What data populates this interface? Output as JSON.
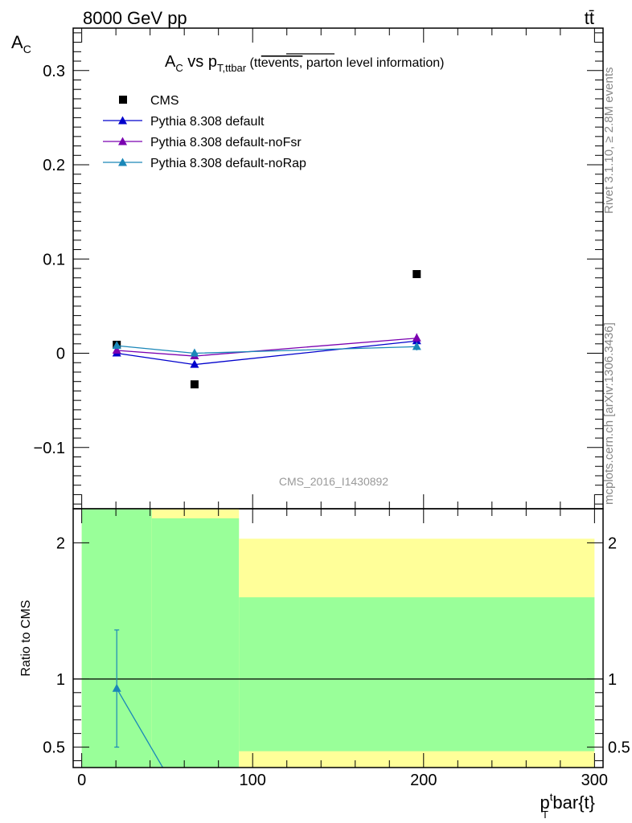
{
  "header": {
    "energy_label": "8000 GeV pp",
    "process_label": "tt̄"
  },
  "side": {
    "rivet": "Rivet 3.1.10, ≥ 2.8M events",
    "mcplots": "mcplots.cern.ch [arXiv:1306.3436]"
  },
  "colors": {
    "cms": "#000000",
    "default": "#0000cc",
    "noFsr": "#7a00b0",
    "noRap": "#1a87b8",
    "band_green": "#99ff99",
    "band_yellow": "#ffff99"
  },
  "chart_data": [
    {
      "type": "scatter",
      "name": "main",
      "title": {
        "a": "A",
        "a_sub": "C",
        "vs": " vs p",
        "p_sub": "T,ttbar",
        "paren_open": " (",
        "tt": "tt",
        "over": "events,",
        "rest": " parton level information)"
      },
      "ylabel": {
        "main": "A",
        "sub": "C"
      },
      "xlim": [
        -5,
        305
      ],
      "ylim": [
        -0.165,
        0.345
      ],
      "yticks": [
        -0.1,
        0,
        0.1,
        0.2,
        0.3
      ],
      "ytick_labels": [
        "−0.1",
        "0",
        "0.1",
        "0.2",
        "0.3"
      ],
      "watermark": "CMS_2016_I1430892",
      "legend_position": "top-left",
      "series": [
        {
          "name": "CMS",
          "marker": "square",
          "color": "#000000",
          "x": [
            20.5,
            66,
            196
          ],
          "y": [
            0.009,
            -0.033,
            0.084
          ]
        },
        {
          "name": "Pythia 8.308 default",
          "marker": "triangle",
          "line": true,
          "color": "#0000cc",
          "x": [
            20.5,
            66,
            196
          ],
          "y": [
            0.0,
            -0.012,
            0.013
          ],
          "err": [
            0.002,
            0.003,
            0.004
          ]
        },
        {
          "name": "Pythia 8.308 default-noFsr",
          "marker": "triangle",
          "line": true,
          "color": "#7a00b0",
          "x": [
            20.5,
            66,
            196
          ],
          "y": [
            0.003,
            -0.003,
            0.016
          ],
          "err": [
            0.002,
            0.003,
            0.005
          ]
        },
        {
          "name": "Pythia 8.308 default-noRap",
          "marker": "triangle",
          "line": true,
          "color": "#1a87b8",
          "x": [
            20.5,
            66,
            196
          ],
          "y": [
            0.008,
            0.0,
            0.007
          ],
          "err": [
            0.002,
            0.004,
            0.004
          ]
        }
      ]
    },
    {
      "type": "line",
      "name": "ratio",
      "ylabel": "Ratio to CMS",
      "xlabel": {
        "p": "p",
        "sup": "t",
        "sub": "T",
        "rest": "bar{t}"
      },
      "xlim": [
        -5,
        305
      ],
      "ylim": [
        0.35,
        2.25
      ],
      "xticks": [
        0,
        100,
        200,
        300
      ],
      "xtick_labels": [
        "0",
        "100",
        "200",
        "300"
      ],
      "yticks": [
        0.5,
        1,
        2
      ],
      "ytick_labels": [
        "0.5",
        "1",
        "2"
      ],
      "reference_line": 1,
      "bands": [
        {
          "x0": 0,
          "x1": 41,
          "green": [
            0.35,
            2.25
          ],
          "yellow": [
            0.35,
            2.25
          ]
        },
        {
          "x0": 41,
          "x1": 92,
          "green": [
            0.35,
            2.18
          ],
          "yellow": [
            0.35,
            2.25
          ]
        },
        {
          "x0": 92,
          "x1": 300,
          "green": [
            0.47,
            1.6
          ],
          "yellow": [
            0.35,
            2.03
          ]
        }
      ],
      "series": [
        {
          "name": "Pythia 8.308 default-noRap",
          "color": "#1a87b8",
          "x": [
            20.5,
            66
          ],
          "y": [
            0.93,
            -0.05
          ],
          "err": [
            0.43,
            0.0
          ]
        }
      ]
    }
  ]
}
